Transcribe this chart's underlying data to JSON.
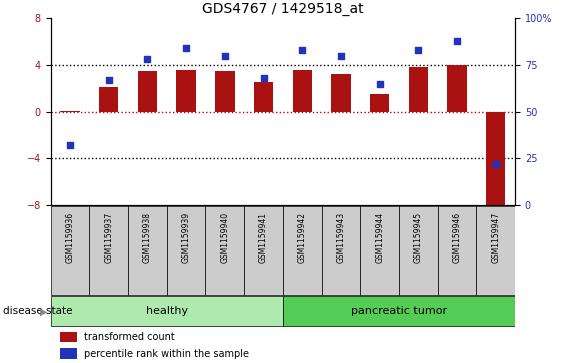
{
  "title": "GDS4767 / 1429518_at",
  "samples": [
    "GSM1159936",
    "GSM1159937",
    "GSM1159938",
    "GSM1159939",
    "GSM1159940",
    "GSM1159941",
    "GSM1159942",
    "GSM1159943",
    "GSM1159944",
    "GSM1159945",
    "GSM1159946",
    "GSM1159947"
  ],
  "red_values": [
    0.05,
    2.1,
    3.5,
    3.6,
    3.5,
    2.5,
    3.6,
    3.2,
    1.5,
    3.8,
    4.0,
    -8.5
  ],
  "blue_values": [
    32,
    67,
    78,
    84,
    80,
    68,
    83,
    80,
    65,
    83,
    88,
    22
  ],
  "ylim_left": [
    -8,
    8
  ],
  "ylim_right": [
    0,
    100
  ],
  "yticks_left": [
    -8,
    -4,
    0,
    4,
    8
  ],
  "yticks_right": [
    0,
    25,
    50,
    75,
    100
  ],
  "ytick_labels_right": [
    "0",
    "25",
    "50",
    "75",
    "100%"
  ],
  "bar_color": "#aa1111",
  "blue_color": "#2233bb",
  "red_dotted_color": "#cc0000",
  "black_dotted_color": "#000000",
  "dotted_lines_black": [
    -4,
    4
  ],
  "dotted_line_red": 0,
  "groups": [
    {
      "label": "healthy",
      "start": 0,
      "end": 5,
      "color": "#aeeaae"
    },
    {
      "label": "pancreatic tumor",
      "start": 6,
      "end": 11,
      "color": "#55cc55"
    }
  ],
  "group_label_prefix": "disease state",
  "legend": [
    {
      "label": "transformed count",
      "color": "#aa1111"
    },
    {
      "label": "percentile rank within the sample",
      "color": "#2233bb"
    }
  ],
  "label_box_color": "#cccccc",
  "bar_width": 0.5,
  "title_fontsize": 10,
  "tick_fontsize": 7,
  "sample_fontsize": 5.5,
  "group_fontsize": 8,
  "legend_fontsize": 7
}
